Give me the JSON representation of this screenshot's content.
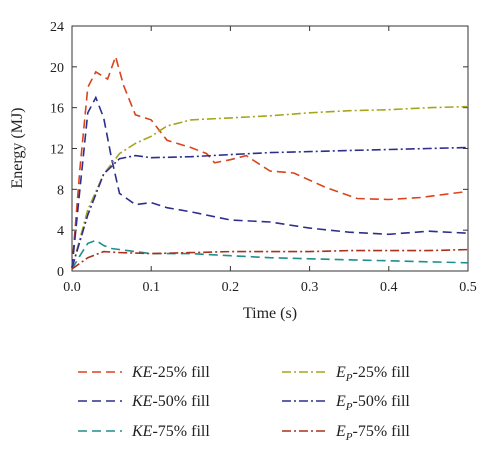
{
  "chart_data": {
    "type": "line",
    "xlabel": "Time (s)",
    "ylabel": "Energy (MJ)",
    "xlim": [
      0.0,
      0.5
    ],
    "ylim": [
      0,
      24
    ],
    "x_ticks": [
      0.0,
      0.1,
      0.2,
      0.3,
      0.4,
      0.5
    ],
    "x_tick_labels": [
      "0.0",
      "0.1",
      "0.2",
      "0.3",
      "0.4",
      "0.5"
    ],
    "y_ticks": [
      0,
      4,
      8,
      12,
      16,
      20,
      24
    ],
    "y_tick_labels": [
      "0",
      "4",
      "8",
      "12",
      "16",
      "20",
      "24"
    ],
    "grid": false,
    "legend_position": "below",
    "series": [
      {
        "name": "KE-25% fill",
        "legend_symbol": "KE",
        "legend_rest": "-25% fill",
        "color": "#d9441d",
        "dash": "dashed",
        "x": [
          0,
          0.01,
          0.02,
          0.03,
          0.045,
          0.055,
          0.065,
          0.08,
          0.1,
          0.12,
          0.15,
          0.17,
          0.18,
          0.2,
          0.22,
          0.25,
          0.28,
          0.32,
          0.36,
          0.4,
          0.44,
          0.47,
          0.5
        ],
        "y": [
          0.3,
          10,
          18,
          19.5,
          18.8,
          21,
          18.2,
          15.3,
          14.8,
          12.8,
          12.1,
          11.5,
          10.6,
          10.9,
          11.3,
          9.8,
          9.6,
          8.2,
          7.1,
          7.0,
          7.2,
          7.5,
          7.8
        ]
      },
      {
        "name": "KE-50% fill",
        "legend_symbol": "KE",
        "legend_rest": "-50% fill",
        "color": "#2e2e8f",
        "dash": "dashed",
        "x": [
          0,
          0.01,
          0.02,
          0.03,
          0.04,
          0.05,
          0.06,
          0.08,
          0.1,
          0.12,
          0.15,
          0.2,
          0.25,
          0.3,
          0.35,
          0.4,
          0.45,
          0.5
        ],
        "y": [
          0.3,
          8,
          15.5,
          17,
          15,
          11,
          7.6,
          6.5,
          6.7,
          6.2,
          5.8,
          5.0,
          4.8,
          4.2,
          3.8,
          3.6,
          3.9,
          3.7
        ]
      },
      {
        "name": "KE-75% fill",
        "legend_symbol": "KE",
        "legend_rest": "-75% fill",
        "color": "#1f8e8e",
        "dash": "dashed",
        "x": [
          0,
          0.01,
          0.02,
          0.03,
          0.04,
          0.05,
          0.07,
          0.1,
          0.15,
          0.2,
          0.25,
          0.3,
          0.35,
          0.4,
          0.45,
          0.5
        ],
        "y": [
          0.2,
          1.5,
          2.7,
          3.0,
          2.5,
          2.2,
          2.0,
          1.7,
          1.7,
          1.5,
          1.3,
          1.2,
          1.1,
          1.0,
          0.9,
          0.8
        ]
      },
      {
        "name": "Ep-25% fill",
        "legend_symbol": "E",
        "legend_sub": "P",
        "legend_rest": "-25% fill",
        "color": "#a6a61c",
        "dash": "dashdot",
        "x": [
          0,
          0.02,
          0.04,
          0.06,
          0.08,
          0.1,
          0.12,
          0.15,
          0.2,
          0.25,
          0.3,
          0.35,
          0.4,
          0.45,
          0.5
        ],
        "y": [
          0.3,
          6.0,
          9.5,
          11.5,
          12.5,
          13.2,
          14.2,
          14.8,
          15.0,
          15.2,
          15.5,
          15.7,
          15.8,
          16.0,
          16.1
        ]
      },
      {
        "name": "Ep-50% fill",
        "legend_symbol": "E",
        "legend_sub": "P",
        "legend_rest": "-50% fill",
        "color": "#2e2e8f",
        "dash": "dashdot",
        "x": [
          0,
          0.02,
          0.04,
          0.06,
          0.08,
          0.1,
          0.15,
          0.2,
          0.25,
          0.3,
          0.35,
          0.4,
          0.45,
          0.5
        ],
        "y": [
          0.3,
          5.5,
          9.5,
          11.0,
          11.3,
          11.1,
          11.2,
          11.4,
          11.6,
          11.7,
          11.8,
          11.9,
          12.0,
          12.1
        ]
      },
      {
        "name": "Ep-75% fill",
        "legend_symbol": "E",
        "legend_sub": "P",
        "legend_rest": "-75% fill",
        "color": "#a8321e",
        "dash": "dashdot",
        "x": [
          0,
          0.02,
          0.04,
          0.06,
          0.1,
          0.15,
          0.2,
          0.25,
          0.3,
          0.35,
          0.4,
          0.45,
          0.5
        ],
        "y": [
          0.2,
          1.3,
          1.9,
          1.8,
          1.7,
          1.8,
          1.9,
          1.9,
          1.9,
          2.0,
          2.0,
          2.0,
          2.1
        ]
      }
    ]
  }
}
